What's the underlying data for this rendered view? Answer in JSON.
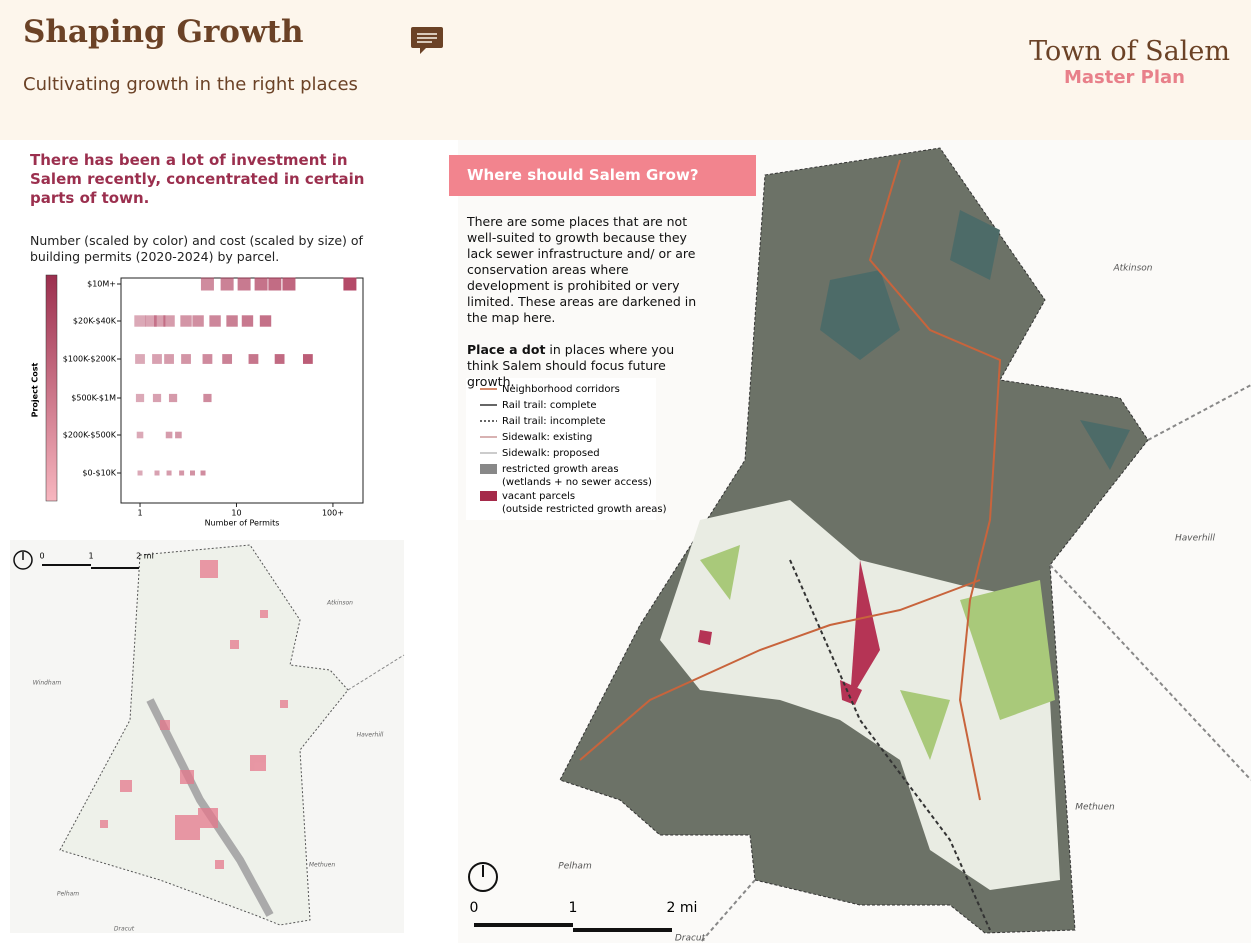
{
  "header": {
    "title": "Shaping Growth",
    "subtitle": "Cultivating growth in the right places",
    "town": "Town of Salem",
    "plan": "Master Plan"
  },
  "intro": "There has been a lot of investment in Salem recently, concentrated in certain parts of town.",
  "chart_data": {
    "type": "scatter",
    "description": "Number (scaled by color) and cost (scaled by size) of building permits (2020-2024) by parcel.",
    "x_label": "Number of Permits",
    "y_label": "Project Cost",
    "log_x": true,
    "xlim": [
      0.635,
      205
    ],
    "xticks": [
      1,
      10,
      {
        "value": 100,
        "label": "100+"
      }
    ],
    "y_categories": [
      "$0-$10K",
      "$200K-$500K",
      "$500K-$1M",
      "$100K-$200K",
      "$20K-$40K",
      "$10M+"
    ],
    "color": "#b0405f",
    "x": [
      5,
      8,
      12,
      18,
      25,
      35,
      150,
      1,
      1.3,
      1.6,
      2,
      3,
      4,
      6,
      9,
      13,
      20,
      1,
      1.5,
      2,
      3,
      5,
      8,
      15,
      28,
      55,
      1,
      1.5,
      2.2,
      5,
      1,
      2,
      2.5,
      1,
      1.5,
      2,
      2.7,
      3.5,
      4.5
    ],
    "values": [
      "$10M+",
      "$10M+",
      "$10M+",
      "$10M+",
      "$10M+",
      "$10M+",
      "$10M+",
      "$20K-$40K",
      "$20K-$40K",
      "$20K-$40K",
      "$20K-$40K",
      "$20K-$40K",
      "$20K-$40K",
      "$20K-$40K",
      "$20K-$40K",
      "$20K-$40K",
      "$20K-$40K",
      "$100K-$200K",
      "$100K-$200K",
      "$100K-$200K",
      "$100K-$200K",
      "$100K-$200K",
      "$100K-$200K",
      "$100K-$200K",
      "$100K-$200K",
      "$100K-$200K",
      "$500K-$1M",
      "$500K-$1M",
      "$500K-$1M",
      "$500K-$1M",
      "$200K-$500K",
      "$200K-$500K",
      "$200K-$500K",
      "$0-$10K",
      "$0-$10K",
      "$0-$10K",
      "$0-$10K",
      "$0-$10K",
      "$0-$10K"
    ]
  },
  "small_map": {
    "labels": [
      "Atkinson",
      "Haverhill",
      "Methuen",
      "Pelham",
      "Dracut",
      "Windham"
    ],
    "scale": [
      "0",
      "1",
      "2 mi"
    ]
  },
  "panel": {
    "title": "Where should Salem Grow?",
    "paragraph": "There are some places that are not well-suited to growth because they lack sewer infrastructure and/ or are conservation areas where development is prohibited or very limited. These areas are darkened in the map here.",
    "action_bold": "Place a dot",
    "action_rest": "in places where you think Salem should focus future growth."
  },
  "legend": [
    [
      "Neighborhood corridors"
    ],
    [
      "Rail trail: complete"
    ],
    [
      "Rail trail: incomplete"
    ],
    [
      "Sidewalk: existing"
    ],
    [
      "Sidewalk: proposed"
    ],
    [
      "restricted growth areas",
      "(wetlands + no sewer access)"
    ],
    [
      "vacant parcels",
      "(outside restricted growth areas)"
    ]
  ],
  "big_map": {
    "labels": [
      "Atkinson",
      "Haverhill",
      "Methuen",
      "Pelham",
      "Dracut"
    ],
    "scale": [
      "0",
      "1",
      "2 mi"
    ]
  }
}
